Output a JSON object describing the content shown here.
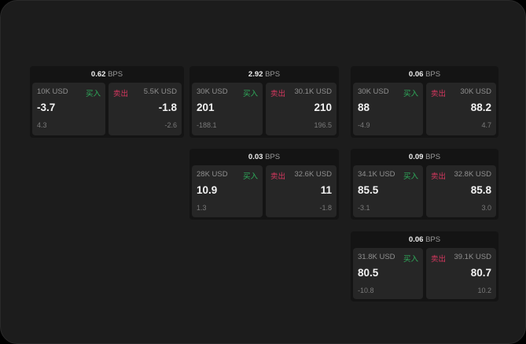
{
  "labels": {
    "buy": "买入",
    "sell": "卖出",
    "unit": "BPS"
  },
  "colors": {
    "buy": "#2fae5c",
    "sell": "#d6385f",
    "background": "#1c1c1c",
    "cell": "#262626"
  },
  "cards": [
    {
      "spread": "0.62",
      "bid_size": "10K USD",
      "bid": "-3.7",
      "bid_change": "4.3",
      "ask_size": "5.5K USD",
      "ask": "-1.8",
      "ask_change": "-2.6"
    },
    {
      "spread": "2.92",
      "bid_size": "30K USD",
      "bid": "201",
      "bid_change": "-188.1",
      "ask_size": "30.1K USD",
      "ask": "210",
      "ask_change": "196.5"
    },
    {
      "spread": "0.06",
      "bid_size": "30K USD",
      "bid": "88",
      "bid_change": "-4.9",
      "ask_size": "30K USD",
      "ask": "88.2",
      "ask_change": "4.7"
    },
    {
      "spread": "0.03",
      "bid_size": "28K USD",
      "bid": "10.9",
      "bid_change": "1.3",
      "ask_size": "32.6K USD",
      "ask": "11",
      "ask_change": "-1.8"
    },
    {
      "spread": "0.09",
      "bid_size": "34.1K USD",
      "bid": "85.5",
      "bid_change": "-3.1",
      "ask_size": "32.8K USD",
      "ask": "85.8",
      "ask_change": "3.0"
    },
    {
      "spread": "0.06",
      "bid_size": "31.8K USD",
      "bid": "80.5",
      "bid_change": "-10.8",
      "ask_size": "39.1K USD",
      "ask": "80.7",
      "ask_change": "10.2"
    }
  ]
}
